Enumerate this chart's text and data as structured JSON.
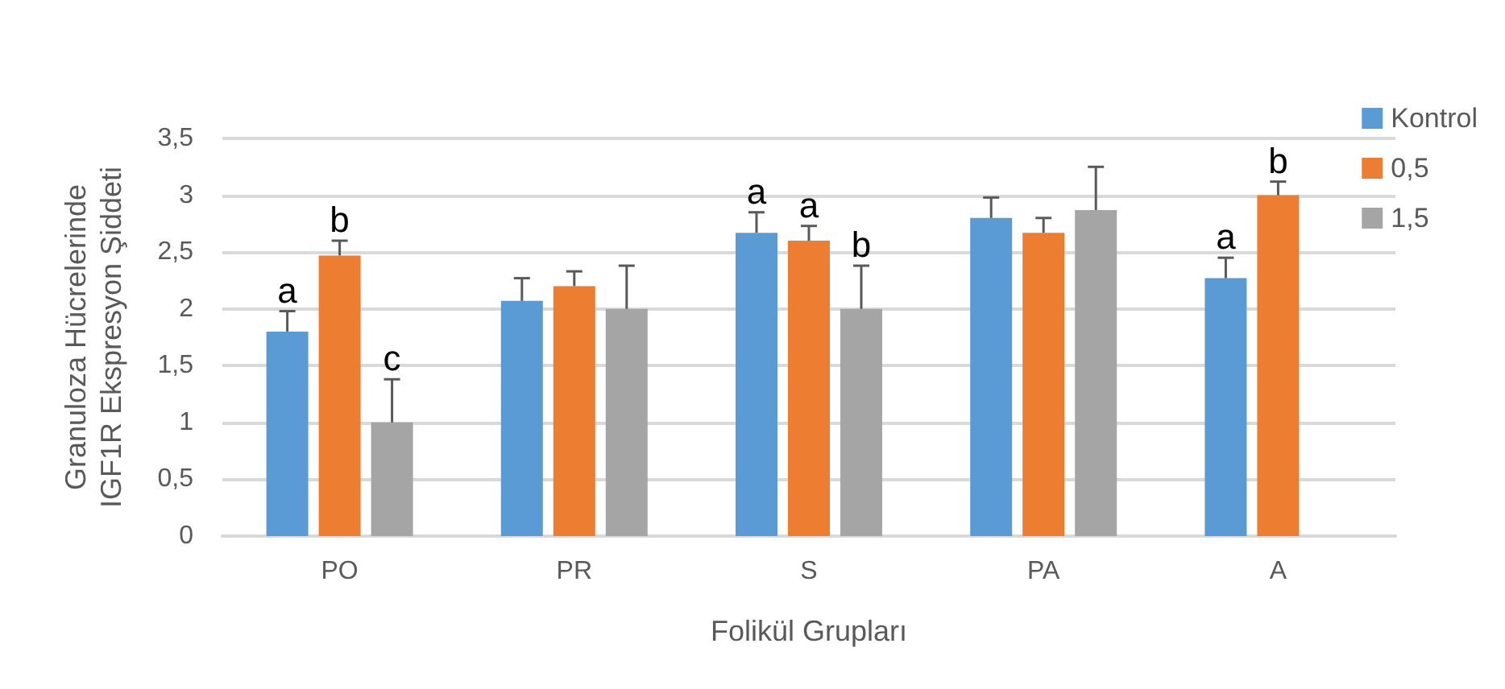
{
  "chart_data": {
    "type": "bar",
    "xlabel": "Folikül Grupları",
    "ylabel": "Granuloza Hücrelerinde\nIGF1R Ekspresyon Şiddeti",
    "categories": [
      "PO",
      "PR",
      "S",
      "PA",
      "A"
    ],
    "series": [
      {
        "name": "Kontrol",
        "color": "#5b9bd5",
        "values": [
          1.8,
          2.07,
          2.67,
          2.8,
          2.27
        ],
        "errors": [
          [
            1.8,
            1.98
          ],
          [
            2.07,
            2.27
          ],
          [
            2.67,
            2.85
          ],
          [
            2.8,
            2.98
          ],
          [
            2.27,
            2.45
          ]
        ],
        "value_labels": [
          "a",
          null,
          "a",
          null,
          "a"
        ]
      },
      {
        "name": "0,5",
        "color": "#ed7d31",
        "values": [
          2.47,
          2.2,
          2.6,
          2.67,
          3.0
        ],
        "errors": [
          [
            2.47,
            2.6
          ],
          [
            2.2,
            2.33
          ],
          [
            2.6,
            2.73
          ],
          [
            2.67,
            2.8
          ],
          [
            3.0,
            3.12
          ]
        ],
        "value_labels": [
          "b",
          null,
          "a",
          null,
          "b"
        ]
      },
      {
        "name": "1,5",
        "color": "#a5a5a5",
        "values": [
          1.0,
          2.0,
          2.0,
          2.87,
          null
        ],
        "errors": [
          [
            1.0,
            1.38
          ],
          [
            2.0,
            2.38
          ],
          [
            2.0,
            2.38
          ],
          [
            2.87,
            3.25
          ],
          null
        ],
        "value_labels": [
          "c",
          null,
          "b",
          null,
          null
        ]
      }
    ],
    "ylim": [
      0,
      3.5
    ],
    "yticks": [
      {
        "value": 0,
        "label": "0"
      },
      {
        "value": 0.5,
        "label": "0,5"
      },
      {
        "value": 1,
        "label": "1"
      },
      {
        "value": 1.5,
        "label": "1,5"
      },
      {
        "value": 2,
        "label": "2"
      },
      {
        "value": 2.5,
        "label": "2,5"
      },
      {
        "value": 3,
        "label": "3"
      },
      {
        "value": 3.5,
        "label": "3,5"
      }
    ],
    "grid": true,
    "legend": "right"
  }
}
